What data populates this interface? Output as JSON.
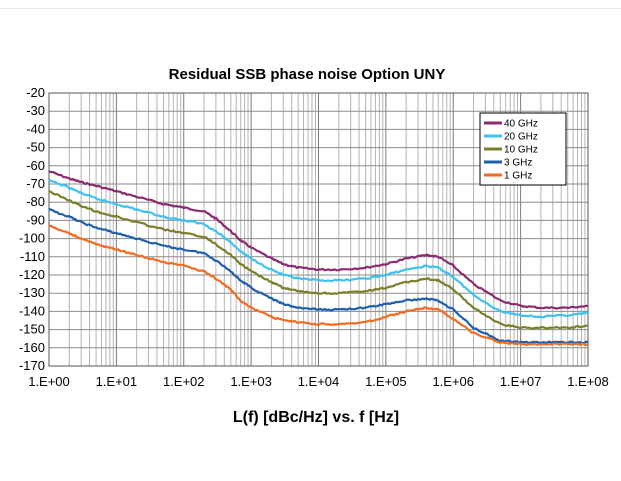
{
  "chart_data": {
    "type": "line",
    "title": "Residual SSB phase noise Option UNY",
    "xlabel": "L(f) [dBc/Hz] vs. f [Hz]",
    "ylabel": "",
    "x_scale": "log10",
    "xlim": [
      1,
      100000000
    ],
    "ylim": [
      -170,
      -20
    ],
    "grid": true,
    "legend_position": "top-right",
    "x_ticks": [
      "1.E+00",
      "1.E+01",
      "1.E+02",
      "1.E+03",
      "1.E+04",
      "1.E+05",
      "1.E+06",
      "1.E+07",
      "1.E+08"
    ],
    "y_ticks": [
      "-20",
      "-30",
      "-40",
      "-50",
      "-60",
      "-70",
      "-80",
      "-90",
      "-100",
      "-110",
      "-120",
      "-130",
      "-140",
      "-150",
      "-160",
      "-170"
    ],
    "x": [
      1,
      2,
      3,
      5,
      10,
      20,
      50,
      100,
      200,
      300,
      500,
      700,
      1000,
      2000,
      3000,
      5000,
      10000,
      20000,
      50000,
      100000,
      200000,
      400000,
      600000,
      1000000,
      2000000,
      5000000,
      10000000,
      20000000,
      50000000,
      100000000
    ],
    "series": [
      {
        "name": "40 GHz",
        "color": "#8B2A6E",
        "values": [
          -63,
          -67,
          -69,
          -71,
          -74,
          -77,
          -81,
          -83,
          -85,
          -89,
          -96,
          -101,
          -105,
          -111,
          -114,
          -116,
          -117,
          -117,
          -116,
          -114,
          -111,
          -109,
          -110,
          -115,
          -125,
          -134,
          -137,
          -138,
          -138,
          -137
        ]
      },
      {
        "name": "20 GHz",
        "color": "#3EC1EE",
        "values": [
          -68,
          -72,
          -75,
          -78,
          -81,
          -84,
          -88,
          -90,
          -92,
          -96,
          -102,
          -107,
          -111,
          -117,
          -120,
          -122,
          -123,
          -123,
          -122,
          -120,
          -117,
          -115,
          -116,
          -121,
          -131,
          -140,
          -142,
          -143,
          -142,
          -141
        ]
      },
      {
        "name": "10 GHz",
        "color": "#7B7F2A",
        "values": [
          -74,
          -79,
          -82,
          -85,
          -88,
          -91,
          -95,
          -97,
          -99,
          -103,
          -109,
          -114,
          -118,
          -124,
          -127,
          -129,
          -130,
          -130,
          -129,
          -127,
          -124,
          -122,
          -123,
          -128,
          -138,
          -147,
          -149,
          -149,
          -149,
          -148
        ]
      },
      {
        "name": "3 GHz",
        "color": "#1F5FAE",
        "values": [
          -84,
          -88,
          -91,
          -94,
          -97,
          -100,
          -104,
          -106,
          -108,
          -112,
          -118,
          -123,
          -127,
          -133,
          -136,
          -138,
          -139,
          -139,
          -138,
          -136,
          -134,
          -133,
          -134,
          -139,
          -149,
          -156,
          -157,
          -157,
          -157,
          -157
        ]
      },
      {
        "name": "1 GHz",
        "color": "#F26B1F",
        "values": [
          -93,
          -97,
          -100,
          -103,
          -106,
          -109,
          -113,
          -115,
          -118,
          -122,
          -128,
          -134,
          -138,
          -143,
          -145,
          -146,
          -147,
          -147,
          -146,
          -143,
          -140,
          -138,
          -139,
          -144,
          -152,
          -157,
          -158,
          -158,
          -158,
          -158
        ]
      }
    ]
  }
}
